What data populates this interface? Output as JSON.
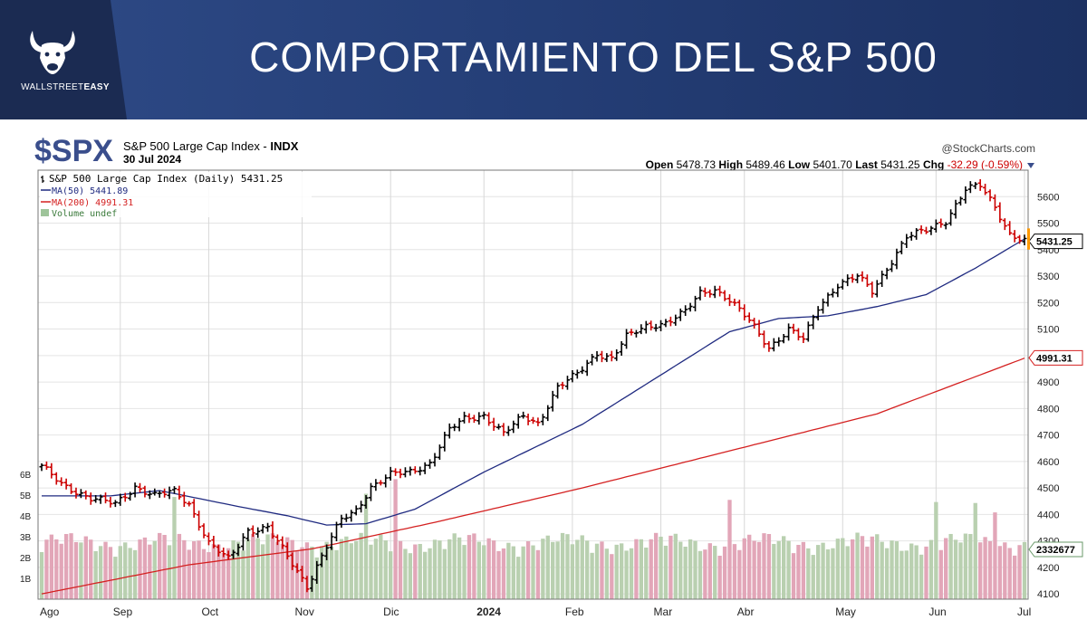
{
  "banner": {
    "title": "COMPORTAMIENTO DEL S&P 500",
    "logo_icon": "bull-icon",
    "logo_text_main": "WALLSTREET",
    "logo_text_bold": "EASY"
  },
  "header": {
    "symbol": "$SPX",
    "name": "S&P 500 Large Cap Index - ",
    "exchange": "INDX",
    "date": "30 Jul 2024",
    "source": "@StockCharts.com",
    "ohlc": {
      "open_label": "Open",
      "open": "5478.73",
      "high_label": "High",
      "high": "5489.46",
      "low_label": "Low",
      "low": "5401.70",
      "last_label": "Last",
      "last": "5431.25",
      "chg_label": "Chg",
      "chg": "-32.29 (-0.59%)"
    },
    "dropdown_icon": "triangle-down-icon"
  },
  "legend": {
    "main": "S&P 500 Large Cap Index (Daily) 5431.25",
    "ma50": "MA(50) 5441.89",
    "ma200": "MA(200) 4991.31",
    "volume": "Volume undef"
  },
  "colors": {
    "up": "#000000",
    "down": "#cc0000",
    "ma50": "#1f2a80",
    "ma200": "#d42020",
    "vol_up": "#b9d0b0",
    "vol_down": "#e2a6b8",
    "last_tag": "#ff9900"
  },
  "chart_data": {
    "type": "line",
    "ylim": [
      4080,
      5700
    ],
    "y_ticks": [
      4100,
      4200,
      4300,
      4400,
      4500,
      4600,
      4700,
      4800,
      4900,
      5000,
      5100,
      5200,
      5300,
      5400,
      5500,
      5600
    ],
    "volume_ticks": [
      "1B",
      "2B",
      "3B",
      "4B",
      "5B",
      "6B"
    ],
    "x_labels": [
      "Ago",
      "Sep",
      "Oct",
      "Nov",
      "Dic",
      "2024",
      "Feb",
      "Mar",
      "Abr",
      "May",
      "Jun",
      "Jul"
    ],
    "last_value_label": "5431.25",
    "ma200_value_label": "4991.31",
    "volume_value_label": "2332677",
    "price_keypoints": [
      {
        "i": 0,
        "v": 4580
      },
      {
        "i": 4,
        "v": 4515
      },
      {
        "i": 10,
        "v": 4460
      },
      {
        "i": 15,
        "v": 4440
      },
      {
        "i": 19,
        "v": 4505
      },
      {
        "i": 23,
        "v": 4470
      },
      {
        "i": 27,
        "v": 4487
      },
      {
        "i": 30,
        "v": 4440
      },
      {
        "i": 34,
        "v": 4290
      },
      {
        "i": 38,
        "v": 4230
      },
      {
        "i": 42,
        "v": 4340
      },
      {
        "i": 46,
        "v": 4350
      },
      {
        "i": 50,
        "v": 4240
      },
      {
        "i": 54,
        "v": 4130
      },
      {
        "i": 58,
        "v": 4280
      },
      {
        "i": 61,
        "v": 4380
      },
      {
        "i": 64,
        "v": 4415
      },
      {
        "i": 67,
        "v": 4505
      },
      {
        "i": 71,
        "v": 4550
      },
      {
        "i": 75,
        "v": 4560
      },
      {
        "i": 79,
        "v": 4595
      },
      {
        "i": 83,
        "v": 4720
      },
      {
        "i": 86,
        "v": 4760
      },
      {
        "i": 90,
        "v": 4775
      },
      {
        "i": 94,
        "v": 4705
      },
      {
        "i": 98,
        "v": 4770
      },
      {
        "i": 101,
        "v": 4745
      },
      {
        "i": 105,
        "v": 4880
      },
      {
        "i": 109,
        "v": 4930
      },
      {
        "i": 113,
        "v": 5010
      },
      {
        "i": 116,
        "v": 4990
      },
      {
        "i": 119,
        "v": 5070
      },
      {
        "i": 123,
        "v": 5110
      },
      {
        "i": 127,
        "v": 5125
      },
      {
        "i": 131,
        "v": 5165
      },
      {
        "i": 134,
        "v": 5235
      },
      {
        "i": 137,
        "v": 5250
      },
      {
        "i": 140,
        "v": 5210
      },
      {
        "i": 144,
        "v": 5130
      },
      {
        "i": 148,
        "v": 5030
      },
      {
        "i": 152,
        "v": 5100
      },
      {
        "i": 155,
        "v": 5060
      },
      {
        "i": 158,
        "v": 5180
      },
      {
        "i": 162,
        "v": 5270
      },
      {
        "i": 166,
        "v": 5300
      },
      {
        "i": 169,
        "v": 5240
      },
      {
        "i": 172,
        "v": 5330
      },
      {
        "i": 176,
        "v": 5450
      },
      {
        "i": 180,
        "v": 5470
      },
      {
        "i": 184,
        "v": 5510
      },
      {
        "i": 188,
        "v": 5630
      },
      {
        "i": 191,
        "v": 5640
      },
      {
        "i": 194,
        "v": 5560
      },
      {
        "i": 197,
        "v": 5460
      },
      {
        "i": 200,
        "v": 5435
      }
    ],
    "ma50_keypoints": [
      {
        "i": 0,
        "v": 4470
      },
      {
        "i": 14,
        "v": 4470
      },
      {
        "i": 24,
        "v": 4490
      },
      {
        "i": 40,
        "v": 4430
      },
      {
        "i": 50,
        "v": 4395
      },
      {
        "i": 58,
        "v": 4360
      },
      {
        "i": 66,
        "v": 4365
      },
      {
        "i": 76,
        "v": 4420
      },
      {
        "i": 90,
        "v": 4560
      },
      {
        "i": 110,
        "v": 4740
      },
      {
        "i": 128,
        "v": 4950
      },
      {
        "i": 140,
        "v": 5090
      },
      {
        "i": 150,
        "v": 5140
      },
      {
        "i": 160,
        "v": 5150
      },
      {
        "i": 170,
        "v": 5185
      },
      {
        "i": 180,
        "v": 5230
      },
      {
        "i": 190,
        "v": 5330
      },
      {
        "i": 200,
        "v": 5440
      }
    ],
    "ma200_keypoints": [
      {
        "i": 0,
        "v": 4100
      },
      {
        "i": 30,
        "v": 4210
      },
      {
        "i": 55,
        "v": 4270
      },
      {
        "i": 80,
        "v": 4370
      },
      {
        "i": 110,
        "v": 4500
      },
      {
        "i": 140,
        "v": 4640
      },
      {
        "i": 170,
        "v": 4780
      },
      {
        "i": 200,
        "v": 4990
      }
    ]
  }
}
